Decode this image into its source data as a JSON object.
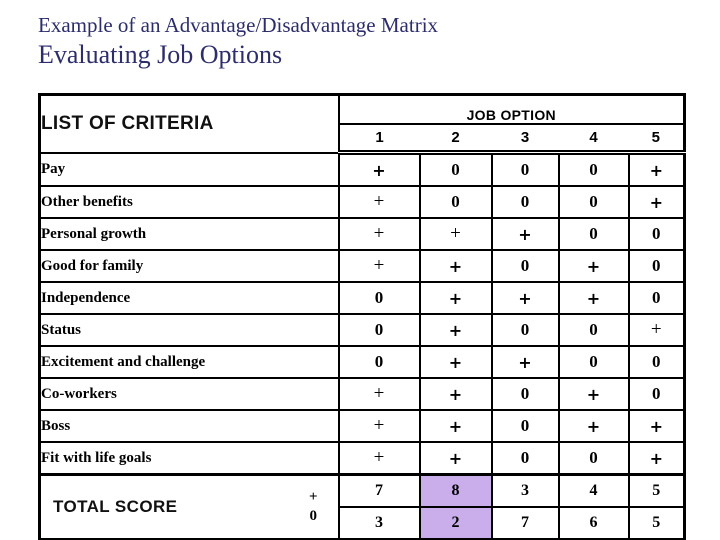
{
  "title": {
    "line1": "Example of an Advantage/Disadvantage Matrix",
    "line2": "Evaluating Job Options"
  },
  "colors": {
    "title_text": "#2d2d6b",
    "highlight": "#c9aeeb",
    "border": "#000000"
  },
  "table": {
    "criteria_header": "LIST OF CRITERIA",
    "job_option_header": "JOB OPTION",
    "option_numbers": [
      "1",
      "2",
      "3",
      "4",
      "5"
    ],
    "rows": [
      {
        "label": "Pay",
        "values": [
          {
            "symbol": "+",
            "emphasis": true
          },
          {
            "symbol": "0"
          },
          {
            "symbol": "0"
          },
          {
            "symbol": "0"
          },
          {
            "symbol": "+",
            "emphasis": true
          }
        ]
      },
      {
        "label": "Other benefits",
        "values": [
          {
            "symbol": "+",
            "emphasis": false
          },
          {
            "symbol": "0"
          },
          {
            "symbol": "0"
          },
          {
            "symbol": "0"
          },
          {
            "symbol": "+",
            "emphasis": true
          }
        ]
      },
      {
        "label": "Personal growth",
        "values": [
          {
            "symbol": "+",
            "emphasis": false
          },
          {
            "symbol": "+",
            "emphasis": false
          },
          {
            "symbol": "+",
            "emphasis": true
          },
          {
            "symbol": "0"
          },
          {
            "symbol": "0"
          }
        ]
      },
      {
        "label": "Good for family",
        "values": [
          {
            "symbol": "+",
            "emphasis": false
          },
          {
            "symbol": "+",
            "emphasis": true
          },
          {
            "symbol": "0"
          },
          {
            "symbol": "+",
            "emphasis": true
          },
          {
            "symbol": "0"
          }
        ]
      },
      {
        "label": "Independence",
        "values": [
          {
            "symbol": "0"
          },
          {
            "symbol": "+",
            "emphasis": true
          },
          {
            "symbol": "+",
            "emphasis": true
          },
          {
            "symbol": "+",
            "emphasis": true
          },
          {
            "symbol": "0"
          }
        ]
      },
      {
        "label": "Status",
        "values": [
          {
            "symbol": "0"
          },
          {
            "symbol": "+",
            "emphasis": true
          },
          {
            "symbol": "0"
          },
          {
            "symbol": "0"
          },
          {
            "symbol": "+",
            "emphasis": false
          }
        ]
      },
      {
        "label": "Excitement and challenge",
        "values": [
          {
            "symbol": "0"
          },
          {
            "symbol": "+",
            "emphasis": true
          },
          {
            "symbol": "+",
            "emphasis": true
          },
          {
            "symbol": "0"
          },
          {
            "symbol": "0"
          }
        ]
      },
      {
        "label": "Co-workers",
        "values": [
          {
            "symbol": "+",
            "emphasis": false
          },
          {
            "symbol": "+",
            "emphasis": true
          },
          {
            "symbol": "0"
          },
          {
            "symbol": "+",
            "emphasis": true
          },
          {
            "symbol": "0"
          }
        ]
      },
      {
        "label": "Boss",
        "values": [
          {
            "symbol": "+",
            "emphasis": false
          },
          {
            "symbol": "+",
            "emphasis": true
          },
          {
            "symbol": "0"
          },
          {
            "symbol": "+",
            "emphasis": true
          },
          {
            "symbol": "+",
            "emphasis": true
          }
        ]
      },
      {
        "label": "Fit with life goals",
        "values": [
          {
            "symbol": "+",
            "emphasis": false
          },
          {
            "symbol": "+",
            "emphasis": true
          },
          {
            "symbol": "0"
          },
          {
            "symbol": "0"
          },
          {
            "symbol": "+",
            "emphasis": true
          }
        ]
      }
    ],
    "total": {
      "label": "TOTAL SCORE",
      "plus_symbol": "+",
      "zero_symbol": "0",
      "plus_scores": [
        "7",
        "8",
        "3",
        "4",
        "5"
      ],
      "zero_scores": [
        "3",
        "2",
        "7",
        "6",
        "5"
      ],
      "highlighted_option": "2"
    }
  }
}
